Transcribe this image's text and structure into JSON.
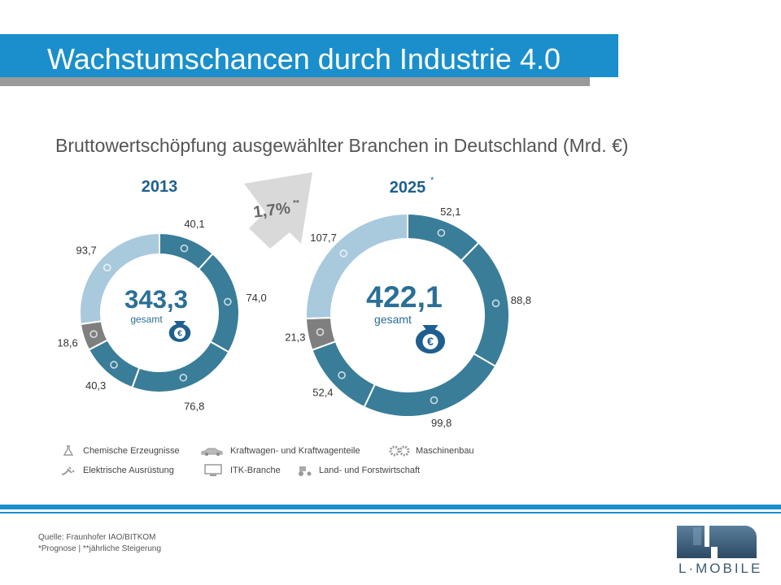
{
  "slide": {
    "title": "Wachstumschancen durch Industrie 4.0",
    "subtitle": "Bruttowertschöpfung ausgewählter Branchen in Deutschland (Mrd. €)",
    "source_line1": "Quelle: Fraunhofer IAO/BITKOM",
    "source_line2": "*Prognose | **jährliche Steigerung",
    "logo_text": "L·MOBILE"
  },
  "colors": {
    "title_bar": "#1a8fcb",
    "title_shadow": "#9a9a9a",
    "donut_dark": "#3a7d98",
    "donut_light": "#a9c9dd",
    "donut_gray": "#7f7f7f",
    "year_text": "#1f5f8f",
    "total_text": "#2b6f96",
    "arrow": "#d9d9d9",
    "label_text": "#333333"
  },
  "chart_data": {
    "type": "donut",
    "growth_label": "1,7%",
    "growth_mark": "**",
    "total_label": "gesamt",
    "categories": [
      {
        "name": "Chemische Erzeugnisse",
        "icon": "flask-icon"
      },
      {
        "name": "Kraftwagen- und Kraftwagenteile",
        "icon": "car-icon"
      },
      {
        "name": "Maschinenbau",
        "icon": "gears-icon"
      },
      {
        "name": "Elektrische Ausrüstung",
        "icon": "plug-icon"
      },
      {
        "name": "ITK-Branche",
        "icon": "monitor-icon"
      },
      {
        "name": "Land- und Forstwirtschaft",
        "icon": "tractor-icon"
      }
    ],
    "charts": [
      {
        "year": "2013",
        "year_mark": "",
        "total": "343,3",
        "values": [
          40.1,
          74.0,
          76.8,
          40.3,
          93.7,
          18.6
        ],
        "value_labels": [
          "40,1",
          "74,0",
          "76,8",
          "40,3",
          "93,7",
          "18,6"
        ]
      },
      {
        "year": "2025",
        "year_mark": "*",
        "total": "422,1",
        "values": [
          52.1,
          88.8,
          99.8,
          52.4,
          107.7,
          21.3
        ],
        "value_labels": [
          "52,1",
          "88,8",
          "99,8",
          "52,4",
          "107,7",
          "21,3"
        ]
      }
    ],
    "draw_order": [
      "Chemische Erzeugnisse",
      "Kraftwagen- und Kraftwagenteile",
      "Maschinenbau",
      "Elektrische Ausrüstung",
      "Land- und Forstwirtschaft",
      "ITK-Branche"
    ]
  }
}
